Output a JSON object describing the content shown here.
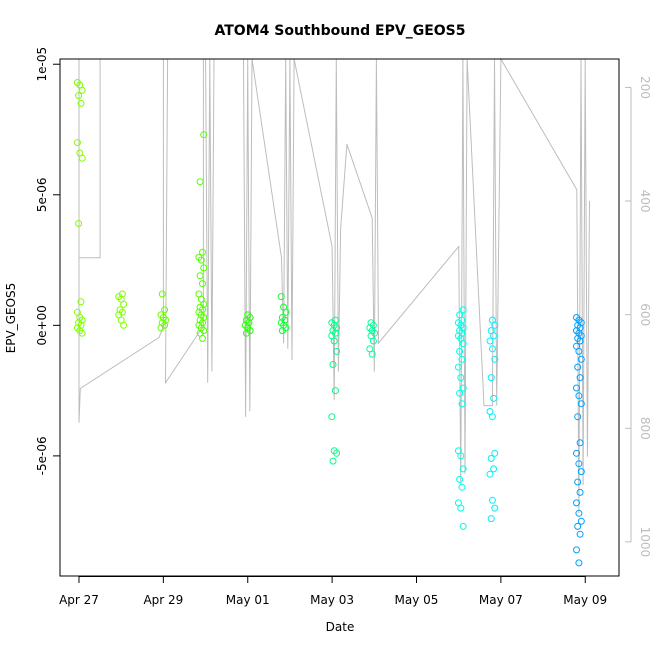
{
  "chart_data": {
    "type": "scatter",
    "title": "ATOM4 Southbound EPV_GEOS5",
    "xlabel": "Date",
    "ylabel": "EPV_GEOS5",
    "x_ticks": [
      "Apr 27",
      "Apr 29",
      "May 01",
      "May 03",
      "May 05",
      "May 07",
      "May 09"
    ],
    "y_ticks": [
      "-5e-06",
      "0e+00",
      "5e-06",
      "1e-05"
    ],
    "y_tick_values": [
      -5e-06,
      0,
      5e-06,
      1e-05
    ],
    "right_axis_ticks": [
      "200",
      "400",
      "600",
      "800",
      "1000"
    ],
    "right_axis_values": [
      200,
      400,
      600,
      800,
      1000
    ],
    "x_range_days": [
      -0.45,
      12.8
    ],
    "ylim": [
      -9.6e-06,
      1.02e-05
    ],
    "right_axis_range": [
      1060,
      150
    ],
    "grid": false,
    "clusters": [
      {
        "x": 0.02,
        "color": "#80ff00",
        "values": [
          9.3e-06,
          9.2e-06,
          9e-06,
          8.8e-06,
          8.5e-06,
          7e-06,
          6.6e-06,
          6.4e-06,
          3.9e-06,
          9e-07,
          5e-07,
          3e-07,
          2e-07,
          1e-07,
          0,
          -1e-07,
          -2e-07,
          -3e-07
        ]
      },
      {
        "x": 1.0,
        "color": "#80ff00",
        "values": [
          1.2e-06,
          1.1e-06,
          1e-06,
          8e-07,
          6e-07,
          5e-07,
          4e-07,
          2e-07,
          0
        ]
      },
      {
        "x": 2.0,
        "color": "#66ff00",
        "values": [
          1.2e-06,
          6e-07,
          4e-07,
          3e-07,
          2e-07,
          1e-07,
          0,
          -1e-07
        ]
      },
      {
        "x": 2.9,
        "color": "#55ff00",
        "values": [
          7.3e-06,
          5.5e-06,
          2.8e-06,
          2.6e-06,
          2.5e-06,
          2.2e-06,
          1.9e-06,
          1.6e-06,
          1.2e-06,
          1e-06,
          8e-07,
          7e-07,
          6e-07,
          5e-07,
          4e-07,
          3e-07,
          2e-07,
          1e-07,
          0,
          -1e-07,
          -2e-07,
          -3e-07,
          -5e-07
        ]
      },
      {
        "x": 4.0,
        "color": "#22ff00",
        "values": [
          4e-07,
          3e-07,
          2e-07,
          1e-07,
          0,
          -1e-07,
          -2e-07,
          -3e-07
        ]
      },
      {
        "x": 4.85,
        "color": "#11ff33",
        "values": [
          1.1e-06,
          7e-07,
          5e-07,
          3e-07,
          2e-07,
          1e-07,
          0,
          -1e-07,
          -2e-07
        ]
      },
      {
        "x": 6.05,
        "color": "#00ff88",
        "values": [
          2e-07,
          1e-07,
          0,
          -1e-07,
          -2e-07,
          -3e-07,
          -4e-07,
          -6e-07,
          -1e-06,
          -1.5e-06,
          -2.5e-06,
          -3.5e-06,
          -4.8e-06,
          -4.9e-06,
          -5.2e-06
        ]
      },
      {
        "x": 6.95,
        "color": "#00ff99",
        "values": [
          1e-07,
          0,
          -1e-07,
          -2e-07,
          -3e-07,
          -4e-07,
          -6e-07,
          -9e-07,
          -1.1e-06
        ]
      },
      {
        "x": 9.05,
        "color": "#00ffe6",
        "values": [
          6e-07,
          4e-07,
          2e-07,
          1e-07,
          0,
          -1e-07,
          -2e-07,
          -3e-07,
          -4e-07,
          -5e-07,
          -7e-07,
          -1e-06,
          -1.3e-06,
          -1.6e-06,
          -2e-06,
          -2.4e-06,
          -2.6e-06,
          -3e-06,
          -4.8e-06,
          -5e-06,
          -5.5e-06,
          -5.9e-06,
          -6.2e-06,
          -6.8e-06,
          -7e-06,
          -7.7e-06
        ]
      },
      {
        "x": 9.8,
        "color": "#00f0ff",
        "values": [
          2e-07,
          0,
          -2e-07,
          -4e-07,
          -6e-07,
          -9e-07,
          -1.3e-06,
          -2e-06,
          -2.8e-06,
          -3.3e-06,
          -3.5e-06,
          -4.9e-06,
          -5.1e-06,
          -5.5e-06,
          -5.7e-06,
          -6.7e-06,
          -7e-06,
          -7.4e-06
        ]
      },
      {
        "x": 11.85,
        "color": "#00a0ff",
        "values": [
          3e-07,
          2e-07,
          1e-07,
          0,
          -1e-07,
          -2e-07,
          -3e-07,
          -4e-07,
          -5e-07,
          -6e-07,
          -8e-07,
          -1e-06,
          -1.3e-06,
          -1.6e-06,
          -2e-06,
          -2.4e-06,
          -2.7e-06,
          -3e-06,
          -3.5e-06,
          -4.5e-06,
          -4.9e-06,
          -5.3e-06,
          -5.6e-06,
          -6e-06,
          -6.4e-06,
          -6.8e-06,
          -7.2e-06,
          -7.5e-06,
          -7.7e-06,
          -8e-06,
          -8.6e-06,
          -9.1e-06
        ]
      }
    ],
    "altitude_profile": {
      "color": "#bdbdbd",
      "points": [
        [
          0.0,
          150
        ],
        [
          0.0,
          500
        ],
        [
          0.5,
          500
        ],
        [
          0.5,
          150
        ],
        [
          0.0,
          150
        ],
        [
          0.0,
          790
        ],
        [
          0.03,
          730
        ],
        [
          1.9,
          640
        ],
        [
          2.0,
          620
        ],
        [
          2.0,
          150
        ],
        [
          2.1,
          150
        ],
        [
          2.05,
          720
        ],
        [
          2.95,
          620
        ],
        [
          2.95,
          150
        ],
        [
          3.0,
          150
        ],
        [
          3.05,
          720
        ],
        [
          3.1,
          150
        ],
        [
          3.15,
          700
        ],
        [
          3.2,
          150
        ],
        [
          3.9,
          150
        ],
        [
          3.95,
          780
        ],
        [
          4.0,
          150
        ],
        [
          4.05,
          770
        ],
        [
          4.1,
          150
        ],
        [
          4.8,
          500
        ],
        [
          4.85,
          650
        ],
        [
          4.9,
          150
        ],
        [
          4.95,
          660
        ],
        [
          5.0,
          150
        ],
        [
          5.05,
          680
        ],
        [
          5.1,
          150
        ],
        [
          6.0,
          480
        ],
        [
          6.05,
          750
        ],
        [
          6.1,
          150
        ],
        [
          6.15,
          700
        ],
        [
          6.2,
          450
        ],
        [
          6.35,
          300
        ],
        [
          6.95,
          430
        ],
        [
          7.0,
          700
        ],
        [
          7.05,
          150
        ],
        [
          7.1,
          650
        ],
        [
          9.0,
          480
        ],
        [
          9.05,
          900
        ],
        [
          9.1,
          150
        ],
        [
          9.15,
          880
        ],
        [
          9.2,
          150
        ],
        [
          9.6,
          760
        ],
        [
          9.8,
          760
        ],
        [
          9.85,
          150
        ],
        [
          9.9,
          760
        ],
        [
          10.0,
          150
        ],
        [
          11.8,
          380
        ],
        [
          11.85,
          950
        ],
        [
          11.9,
          150
        ],
        [
          11.95,
          900
        ],
        [
          12.0,
          150
        ],
        [
          12.05,
          850
        ],
        [
          12.1,
          400
        ]
      ]
    }
  }
}
